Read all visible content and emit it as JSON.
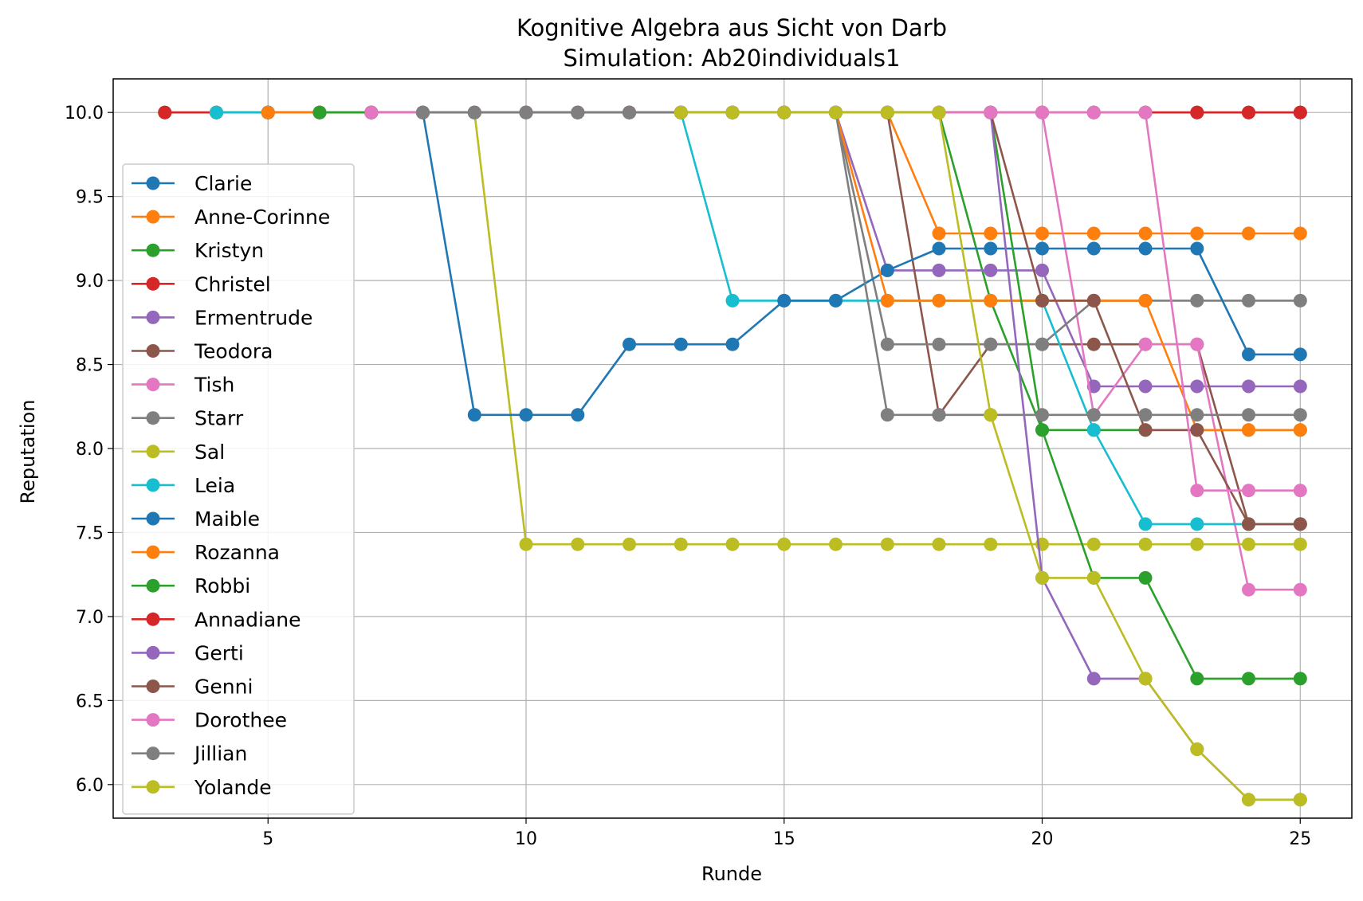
{
  "chart_data": {
    "type": "line",
    "title": "Kognitive Algebra aus Sicht von Darb",
    "subtitle": "Simulation: Ab20individuals1",
    "xlabel": "Runde",
    "ylabel": "Reputation",
    "xlim": [
      2,
      26
    ],
    "ylim": [
      5.8,
      10.2
    ],
    "xticks": [
      5,
      10,
      15,
      20,
      25
    ],
    "yticks": [
      6.0,
      6.5,
      7.0,
      7.5,
      8.0,
      8.5,
      9.0,
      9.5,
      10.0
    ],
    "xtick_labels": [
      "5",
      "10",
      "15",
      "20",
      "25"
    ],
    "ytick_labels": [
      "6.0",
      "6.5",
      "7.0",
      "7.5",
      "8.0",
      "8.5",
      "9.0",
      "9.5",
      "10.0"
    ],
    "grid": true,
    "legend_position": "center-left",
    "series": [
      {
        "name": "Clarie",
        "color": "#1f77b4",
        "x": [
          3,
          4,
          5,
          6,
          7,
          8,
          9,
          10,
          11,
          12,
          13,
          14,
          15,
          16,
          17,
          18,
          19,
          20,
          21,
          22,
          23,
          24,
          25
        ],
        "y": [
          10,
          10,
          10,
          10,
          10,
          10,
          10,
          10,
          10,
          10,
          10,
          10,
          10,
          10,
          10,
          10,
          10,
          10,
          10,
          10,
          10,
          10,
          10
        ]
      },
      {
        "name": "Anne-Corinne",
        "color": "#ff7f0e",
        "x": [
          3,
          4,
          5,
          6,
          7,
          8,
          9,
          10,
          11,
          12,
          13,
          14,
          15,
          16,
          17,
          18,
          19,
          20,
          21,
          22,
          23,
          24,
          25
        ],
        "y": [
          10,
          10,
          10,
          10,
          10,
          10,
          10,
          10,
          10,
          10,
          10,
          10,
          10,
          10,
          10,
          9.28,
          9.28,
          9.28,
          9.28,
          9.28,
          9.28,
          9.28,
          9.28
        ]
      },
      {
        "name": "Kristyn",
        "color": "#2ca02c",
        "x": [
          3,
          4,
          5,
          6,
          7,
          8,
          9,
          10,
          11,
          12,
          13,
          14,
          15,
          16,
          17,
          18,
          19,
          20,
          21,
          22,
          23,
          24,
          25
        ],
        "y": [
          10,
          10,
          10,
          10,
          10,
          10,
          10,
          10,
          10,
          10,
          10,
          10,
          10,
          10,
          10,
          10,
          8.88,
          8.11,
          8.11,
          8.11,
          8.11,
          8.11,
          8.11
        ]
      },
      {
        "name": "Christel",
        "color": "#d62728",
        "x": [
          3,
          4,
          5,
          6,
          7,
          8,
          9,
          10,
          11,
          12,
          13,
          14,
          15,
          16,
          17,
          18,
          19,
          20,
          21,
          22,
          23,
          24,
          25
        ],
        "y": [
          10,
          10,
          10,
          10,
          10,
          10,
          10,
          10,
          10,
          10,
          10,
          10,
          10,
          10,
          10,
          10,
          10,
          10,
          10,
          10,
          10,
          10,
          10
        ]
      },
      {
        "name": "Ermentrude",
        "color": "#9467bd",
        "x": [
          4,
          5,
          6,
          7,
          8,
          9,
          10,
          11,
          12,
          13,
          14,
          15,
          16,
          17,
          18,
          19,
          20,
          21,
          22,
          23,
          24,
          25
        ],
        "y": [
          10,
          10,
          10,
          10,
          10,
          10,
          10,
          10,
          10,
          10,
          10,
          10,
          10,
          9.06,
          9.06,
          9.06,
          9.06,
          8.37,
          8.37,
          8.37,
          8.37,
          8.37
        ]
      },
      {
        "name": "Teodora",
        "color": "#8c564b",
        "x": [
          4,
          5,
          6,
          7,
          8,
          9,
          10,
          11,
          12,
          13,
          14,
          15,
          16,
          17,
          18,
          19,
          20,
          21,
          22,
          23,
          24,
          25
        ],
        "y": [
          10,
          10,
          10,
          10,
          10,
          10,
          10,
          10,
          10,
          10,
          10,
          10,
          10,
          10,
          8.2,
          8.62,
          8.62,
          8.62,
          8.62,
          8.62,
          7.55,
          7.55
        ]
      },
      {
        "name": "Tish",
        "color": "#e377c2",
        "x": [
          4,
          5,
          6,
          7,
          8,
          9,
          10,
          11,
          12,
          13,
          14,
          15,
          16,
          17,
          18,
          19,
          20,
          21,
          22,
          23,
          24,
          25
        ],
        "y": [
          10,
          10,
          10,
          10,
          10,
          10,
          10,
          10,
          10,
          10,
          10,
          10,
          10,
          10,
          10,
          10,
          10,
          8.2,
          8.62,
          8.62,
          7.16,
          7.16
        ]
      },
      {
        "name": "Starr",
        "color": "#7f7f7f",
        "x": [
          4,
          5,
          6,
          7,
          8,
          9,
          10,
          11,
          12,
          13,
          14,
          15,
          16,
          17,
          18,
          19,
          20,
          21,
          22,
          23,
          24,
          25
        ],
        "y": [
          10,
          10,
          10,
          10,
          10,
          10,
          10,
          10,
          10,
          10,
          10,
          10,
          10,
          8.62,
          8.62,
          8.62,
          8.62,
          8.88,
          8.88,
          8.88,
          8.88,
          8.88
        ]
      },
      {
        "name": "Sal",
        "color": "#bcbd22",
        "x": [
          4,
          5,
          6,
          7,
          8,
          9,
          10,
          11,
          12,
          13,
          14,
          15,
          16,
          17,
          18,
          19,
          20,
          21,
          22,
          23,
          24,
          25
        ],
        "y": [
          10,
          10,
          10,
          10,
          10,
          10,
          7.43,
          7.43,
          7.43,
          7.43,
          7.43,
          7.43,
          7.43,
          7.43,
          7.43,
          7.43,
          7.43,
          7.43,
          7.43,
          7.43,
          7.43,
          7.43
        ]
      },
      {
        "name": "Leia",
        "color": "#17becf",
        "x": [
          4,
          5,
          6,
          7,
          8,
          9,
          10,
          11,
          12,
          13,
          14,
          15,
          16,
          17,
          18,
          19,
          20,
          21,
          22,
          23,
          24,
          25
        ],
        "y": [
          10,
          10,
          10,
          10,
          10,
          10,
          10,
          10,
          10,
          10,
          8.88,
          8.88,
          8.88,
          8.88,
          8.88,
          8.88,
          8.88,
          8.11,
          7.55,
          7.55,
          7.55,
          7.55
        ]
      },
      {
        "name": "Maible",
        "color": "#1f77b4",
        "x": [
          5,
          6,
          7,
          8,
          9,
          10,
          11,
          12,
          13,
          14,
          15,
          16,
          17,
          18,
          19,
          20,
          21,
          22,
          23,
          24,
          25
        ],
        "y": [
          10,
          10,
          10,
          10,
          8.2,
          8.2,
          8.2,
          8.62,
          8.62,
          8.62,
          8.88,
          8.88,
          9.06,
          9.19,
          9.19,
          9.19,
          9.19,
          9.19,
          9.19,
          8.56,
          8.56
        ]
      },
      {
        "name": "Rozanna",
        "color": "#ff7f0e",
        "x": [
          5,
          6,
          7,
          8,
          9,
          10,
          11,
          12,
          13,
          14,
          15,
          16,
          17,
          18,
          19,
          20,
          21,
          22,
          23,
          24,
          25
        ],
        "y": [
          10,
          10,
          10,
          10,
          10,
          10,
          10,
          10,
          10,
          10,
          10,
          10,
          8.88,
          8.88,
          8.88,
          8.88,
          8.88,
          8.88,
          8.11,
          8.11,
          8.11
        ]
      },
      {
        "name": "Robbi",
        "color": "#2ca02c",
        "x": [
          6,
          7,
          8,
          9,
          10,
          11,
          12,
          13,
          14,
          15,
          16,
          17,
          18,
          19,
          20,
          21,
          22,
          23,
          24,
          25
        ],
        "y": [
          10,
          10,
          10,
          10,
          10,
          10,
          10,
          10,
          10,
          10,
          10,
          10,
          10,
          10,
          8.11,
          7.23,
          7.23,
          6.63,
          6.63,
          6.63
        ]
      },
      {
        "name": "Annadiane",
        "color": "#d62728",
        "x": [
          7,
          8,
          9,
          10,
          11,
          12,
          13,
          14,
          15,
          16,
          17,
          18,
          19,
          20,
          21,
          22,
          23,
          24,
          25
        ],
        "y": [
          10,
          10,
          10,
          10,
          10,
          10,
          10,
          10,
          10,
          10,
          10,
          10,
          10,
          10,
          10,
          10,
          10,
          10,
          10
        ]
      },
      {
        "name": "Gerti",
        "color": "#9467bd",
        "x": [
          7,
          8,
          9,
          10,
          11,
          12,
          13,
          14,
          15,
          16,
          17,
          18,
          19,
          20,
          21,
          22,
          23,
          24,
          25
        ],
        "y": [
          10,
          10,
          10,
          10,
          10,
          10,
          10,
          10,
          10,
          10,
          10,
          10,
          10,
          7.23,
          6.63,
          6.63,
          6.21,
          5.91,
          5.91
        ]
      },
      {
        "name": "Genni",
        "color": "#8c564b",
        "x": [
          7,
          8,
          9,
          10,
          11,
          12,
          13,
          14,
          15,
          16,
          17,
          18,
          19,
          20,
          21,
          22,
          23,
          24,
          25
        ],
        "y": [
          10,
          10,
          10,
          10,
          10,
          10,
          10,
          10,
          10,
          10,
          10,
          10,
          10,
          8.88,
          8.88,
          8.11,
          8.11,
          7.55,
          7.55
        ]
      },
      {
        "name": "Dorothee",
        "color": "#e377c2",
        "x": [
          7,
          8,
          9,
          10,
          11,
          12,
          13,
          14,
          15,
          16,
          17,
          18,
          19,
          20,
          21,
          22,
          23,
          24,
          25
        ],
        "y": [
          10,
          10,
          10,
          10,
          10,
          10,
          10,
          10,
          10,
          10,
          10,
          10,
          10,
          10,
          10,
          10,
          7.75,
          7.75,
          7.75
        ]
      },
      {
        "name": "Jillian",
        "color": "#7f7f7f",
        "x": [
          8,
          9,
          10,
          11,
          12,
          13,
          14,
          15,
          16,
          17,
          18,
          19,
          20,
          21,
          22,
          23,
          24,
          25
        ],
        "y": [
          10,
          10,
          10,
          10,
          10,
          10,
          10,
          10,
          10,
          8.2,
          8.2,
          8.2,
          8.2,
          8.2,
          8.2,
          8.2,
          8.2,
          8.2
        ]
      },
      {
        "name": "Yolande",
        "color": "#bcbd22",
        "x": [
          13,
          14,
          15,
          16,
          17,
          18,
          19,
          20,
          21,
          22,
          23,
          24,
          25
        ],
        "y": [
          10,
          10,
          10,
          10,
          10,
          10,
          8.2,
          7.23,
          7.23,
          6.63,
          6.21,
          5.91,
          5.91
        ]
      }
    ]
  }
}
